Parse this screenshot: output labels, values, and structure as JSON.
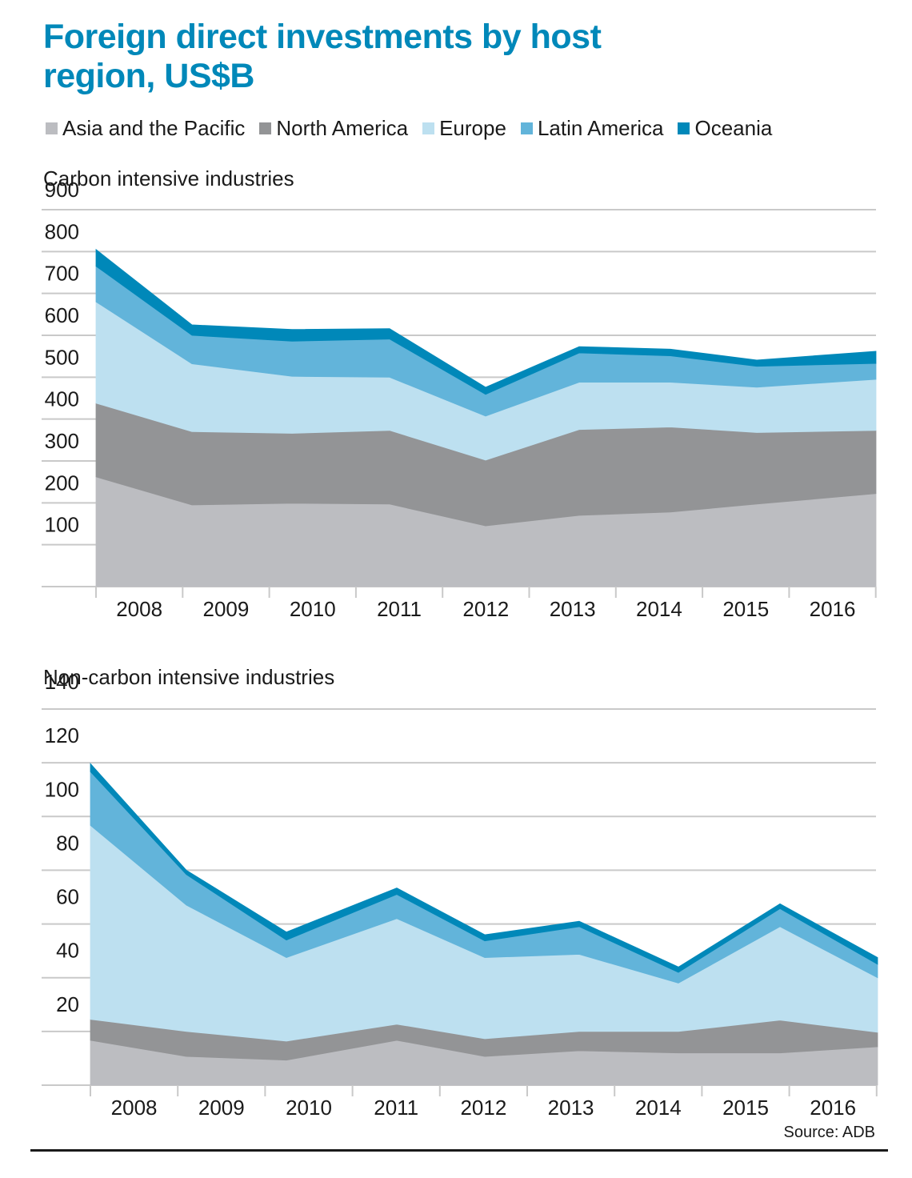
{
  "title": "Foreign direct investments by host region, US$B",
  "legend": [
    {
      "label": "Asia and the Pacific",
      "color": "#bcbdc1"
    },
    {
      "label": "North America",
      "color": "#939496"
    },
    {
      "label": "Europe",
      "color": "#bde0f0"
    },
    {
      "label": "Latin America",
      "color": "#62b4da"
    },
    {
      "label": "Oceania",
      "color": "#0088b9"
    }
  ],
  "source": "Source: ADB",
  "chart_data": [
    {
      "type": "area",
      "stacked": true,
      "title": "Carbon intensive industries",
      "xlabel": "",
      "ylabel": "US$B",
      "ylim": [
        0,
        900
      ],
      "yticks": [
        100,
        200,
        300,
        400,
        500,
        600,
        700,
        800,
        900
      ],
      "grid": true,
      "legend_position": "top",
      "categories": [
        "2008",
        "2009",
        "2010",
        "2011",
        "2012",
        "2013",
        "2014",
        "2015",
        "2016"
      ],
      "series": [
        {
          "name": "Asia and the Pacific",
          "color": "#bcbdc1",
          "values": [
            262,
            195,
            199,
            197,
            145,
            170,
            178,
            197,
            222
          ]
        },
        {
          "name": "North America",
          "color": "#939496",
          "values": [
            176,
            175,
            167,
            176,
            157,
            205,
            203,
            171,
            151
          ]
        },
        {
          "name": "Europe",
          "color": "#bde0f0",
          "values": [
            242,
            162,
            136,
            127,
            105,
            113,
            107,
            108,
            122
          ]
        },
        {
          "name": "Latin America",
          "color": "#62b4da",
          "values": [
            85,
            68,
            84,
            91,
            52,
            70,
            63,
            50,
            38
          ]
        },
        {
          "name": "Oceania",
          "color": "#0088b9",
          "values": [
            40,
            25,
            28,
            25,
            17,
            15,
            16,
            15,
            29
          ]
        }
      ]
    },
    {
      "type": "area",
      "stacked": true,
      "title": "Non-carbon intensive industries",
      "xlabel": "",
      "ylabel": "US$B",
      "ylim": [
        0,
        140
      ],
      "yticks": [
        20,
        40,
        60,
        80,
        100,
        120,
        140
      ],
      "grid": true,
      "legend_position": "top",
      "categories": [
        "2008",
        "2009",
        "2010",
        "2011",
        "2012",
        "2013",
        "2014",
        "2015",
        "2016"
      ],
      "series": [
        {
          "name": "Asia and the Pacific",
          "color": "#bcbdc1",
          "values": [
            16.7,
            10.7,
            9.3,
            16.7,
            10.7,
            12.8,
            12.0,
            12.0,
            14.3
          ]
        },
        {
          "name": "North America",
          "color": "#939496",
          "values": [
            7.8,
            9.3,
            7.1,
            6.0,
            6.6,
            7.2,
            8.0,
            12.2,
            5.4
          ]
        },
        {
          "name": "Europe",
          "color": "#bde0f0",
          "values": [
            72.2,
            47.0,
            31.1,
            39.3,
            30.2,
            28.7,
            18.0,
            34.8,
            20.3
          ]
        },
        {
          "name": "Latin America",
          "color": "#62b4da",
          "values": [
            20.0,
            11.4,
            6.5,
            9.0,
            6.2,
            10.3,
            4.0,
            6.7,
            5.0
          ]
        },
        {
          "name": "Oceania",
          "color": "#0088b9",
          "values": [
            3.0,
            1.6,
            3.0,
            2.4,
            2.3,
            2.0,
            2.0,
            1.8,
            2.5
          ]
        }
      ]
    }
  ]
}
